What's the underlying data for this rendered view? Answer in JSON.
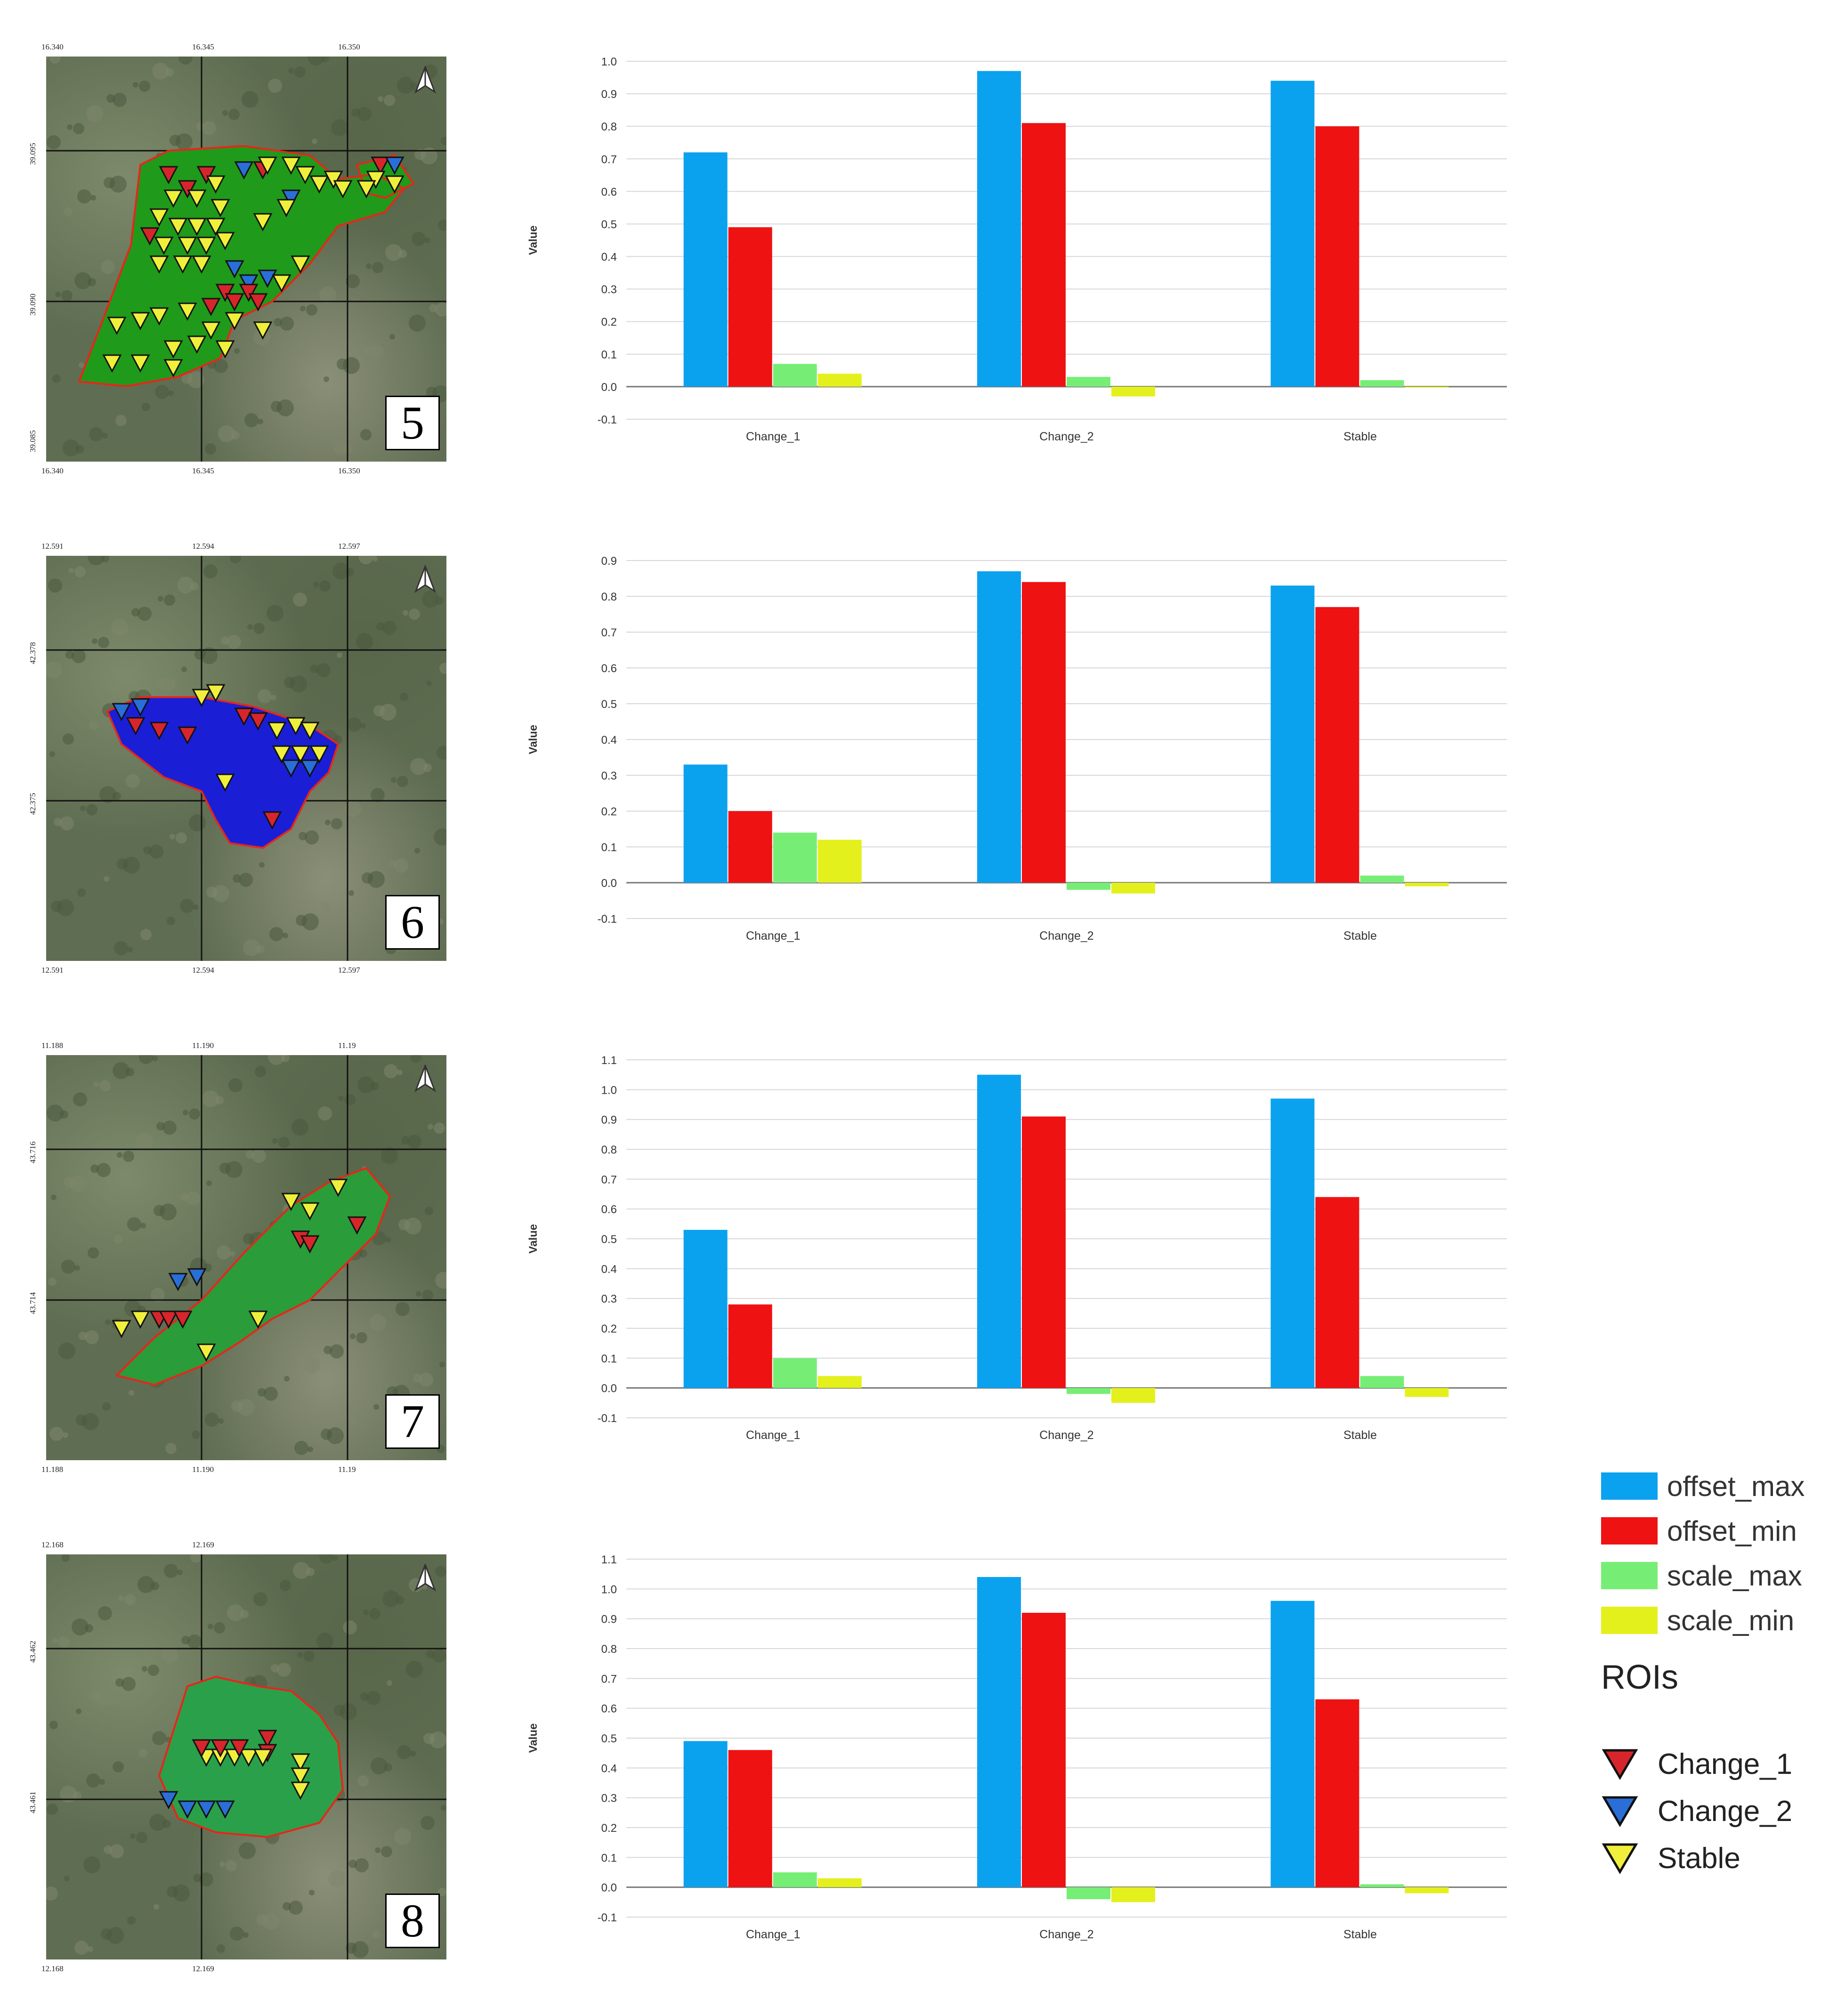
{
  "colors": {
    "offset_max": "#0aa2ee",
    "offset_min": "#ee1212",
    "scale_max": "#76ee76",
    "scale_min": "#e4f01c"
  },
  "panels": [
    {
      "number": "5",
      "top_ticks": [
        "16.340",
        "16.345",
        "16.350"
      ],
      "bottom_ticks": [
        "16.340",
        "16.345",
        "16.350"
      ],
      "left_ticks": [
        "39.095",
        "39.090",
        "39.085"
      ],
      "map_fill": "#1f9a1a",
      "chart": {
        "type": "bar",
        "ylabel": "Value",
        "ylim": [
          -0.1,
          1.0
        ],
        "yticks": [
          "1.0",
          "0.9",
          "0.8",
          "0.7",
          "0.6",
          "0.5",
          "0.4",
          "0.3",
          "0.2",
          "0.1",
          "0.0",
          "-0.1"
        ],
        "categories": [
          "Change_1",
          "Change_2",
          "Stable"
        ],
        "series": [
          {
            "name": "offset_max",
            "values": [
              0.72,
              0.97,
              0.94
            ]
          },
          {
            "name": "offset_min",
            "values": [
              0.49,
              0.81,
              0.8
            ]
          },
          {
            "name": "scale_max",
            "values": [
              0.07,
              0.03,
              0.02
            ]
          },
          {
            "name": "scale_min",
            "values": [
              0.04,
              -0.03,
              0.0
            ]
          }
        ]
      }
    },
    {
      "number": "6",
      "top_ticks": [
        "12.591",
        "12.594",
        "12.597"
      ],
      "bottom_ticks": [
        "12.591",
        "12.594",
        "12.597"
      ],
      "left_ticks": [
        "42.378",
        "42.375"
      ],
      "map_fill": "#1a1fd6",
      "chart": {
        "type": "bar",
        "ylabel": "Value",
        "ylim": [
          -0.1,
          0.9
        ],
        "yticks": [
          "0.9",
          "0.8",
          "0.7",
          "0.6",
          "0.5",
          "0.4",
          "0.3",
          "0.2",
          "0.1",
          "0.0",
          "-0.1"
        ],
        "categories": [
          "Change_1",
          "Change_2",
          "Stable"
        ],
        "series": [
          {
            "name": "offset_max",
            "values": [
              0.33,
              0.87,
              0.83
            ]
          },
          {
            "name": "offset_min",
            "values": [
              0.2,
              0.84,
              0.77
            ]
          },
          {
            "name": "scale_max",
            "values": [
              0.14,
              -0.02,
              0.02
            ]
          },
          {
            "name": "scale_min",
            "values": [
              0.12,
              -0.03,
              -0.01
            ]
          }
        ]
      }
    },
    {
      "number": "7",
      "top_ticks": [
        "11.188",
        "11.190",
        "11.19"
      ],
      "bottom_ticks": [
        "11.188",
        "11.190",
        "11.19"
      ],
      "left_ticks": [
        "43.716",
        "43.714"
      ],
      "map_fill": "#2a9c3a",
      "chart": {
        "type": "bar",
        "ylabel": "Value",
        "ylim": [
          -0.1,
          1.1
        ],
        "yticks": [
          "1.1",
          "1.0",
          "0.9",
          "0.8",
          "0.7",
          "0.6",
          "0.5",
          "0.4",
          "0.3",
          "0.2",
          "0.1",
          "0.0",
          "-0.1"
        ],
        "categories": [
          "Change_1",
          "Change_2",
          "Stable"
        ],
        "series": [
          {
            "name": "offset_max",
            "values": [
              0.53,
              1.05,
              0.97
            ]
          },
          {
            "name": "offset_min",
            "values": [
              0.28,
              0.91,
              0.64
            ]
          },
          {
            "name": "scale_max",
            "values": [
              0.1,
              -0.02,
              0.04
            ]
          },
          {
            "name": "scale_min",
            "values": [
              0.04,
              -0.05,
              -0.03
            ]
          }
        ]
      }
    },
    {
      "number": "8",
      "top_ticks": [
        "12.168",
        "12.169"
      ],
      "bottom_ticks": [
        "12.168",
        "12.169"
      ],
      "left_ticks": [
        "43.462",
        "43.461"
      ],
      "map_fill": "#2aa04a",
      "chart": {
        "type": "bar",
        "ylabel": "Value",
        "ylim": [
          -0.1,
          1.1
        ],
        "yticks": [
          "1.1",
          "1.0",
          "0.9",
          "0.8",
          "0.7",
          "0.6",
          "0.5",
          "0.4",
          "0.3",
          "0.2",
          "0.1",
          "0.0",
          "-0.1"
        ],
        "categories": [
          "Change_1",
          "Change_2",
          "Stable"
        ],
        "series": [
          {
            "name": "offset_max",
            "values": [
              0.49,
              1.04,
              0.96
            ]
          },
          {
            "name": "offset_min",
            "values": [
              0.46,
              0.92,
              0.63
            ]
          },
          {
            "name": "scale_max",
            "values": [
              0.05,
              -0.04,
              0.01
            ]
          },
          {
            "name": "scale_min",
            "values": [
              0.03,
              -0.05,
              -0.02
            ]
          }
        ]
      }
    }
  ],
  "legend": {
    "series": [
      "offset_max",
      "offset_min",
      "scale_max",
      "scale_min"
    ],
    "roi_title": "ROIs",
    "rois": [
      {
        "label": "Change_1",
        "color": "#d7262b"
      },
      {
        "label": "Change_2",
        "color": "#2a6fd8"
      },
      {
        "label": "Stable",
        "color": "#f0f03c"
      }
    ]
  }
}
